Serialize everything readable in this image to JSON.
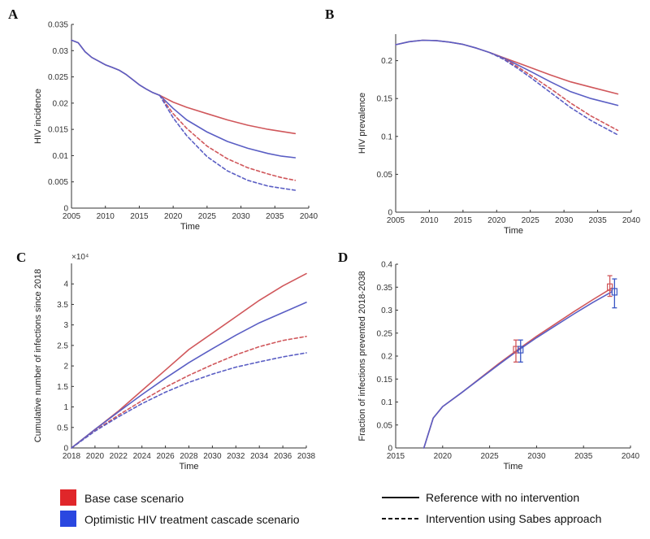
{
  "colors": {
    "base": "#d0575b",
    "optimistic": "#5a5ec4",
    "errbar_blue": "#3a56c4",
    "axis": "#333333"
  },
  "legend": {
    "base_label": "Base case scenario",
    "optimistic_label": "Optimistic HIV treatment cascade scenario",
    "solid_label": "Reference with no intervention",
    "dashed_label": "Intervention using Sabes approach"
  },
  "chart_data": [
    {
      "id": "A",
      "type": "line",
      "letter": "A",
      "xlabel": "Time",
      "ylabel": "HIV incidence",
      "xlim": [
        2005,
        2040
      ],
      "ylim": [
        0,
        0.035
      ],
      "xticks": [
        2005,
        2010,
        2015,
        2020,
        2025,
        2030,
        2035,
        2040
      ],
      "xtick_labels": [
        "2005",
        "2010",
        "2015",
        "2020",
        "2025",
        "2030",
        "2035",
        "2040"
      ],
      "yticks": [
        0,
        0.005,
        0.01,
        0.015,
        0.02,
        0.025,
        0.03,
        0.035
      ],
      "ytick_labels": [
        "0",
        "0.005",
        "0.01",
        "0.015",
        "0.02",
        "0.025",
        "0.03",
        "0.035"
      ],
      "series": [
        {
          "name": "Base case - reference",
          "color": "base",
          "dash": false,
          "x": [
            2005,
            2006,
            2007,
            2008,
            2009,
            2010,
            2011,
            2012,
            2013,
            2014,
            2015,
            2016,
            2017,
            2018,
            2020,
            2022,
            2025,
            2028,
            2031,
            2034,
            2036,
            2038
          ],
          "y": [
            0.032,
            0.0315,
            0.0298,
            0.0287,
            0.028,
            0.0273,
            0.0268,
            0.0263,
            0.0255,
            0.0245,
            0.0235,
            0.0227,
            0.022,
            0.0215,
            0.0202,
            0.0192,
            0.018,
            0.0168,
            0.0158,
            0.015,
            0.0146,
            0.0142
          ]
        },
        {
          "name": "Optimistic - reference",
          "color": "optimistic",
          "dash": false,
          "x": [
            2005,
            2006,
            2007,
            2008,
            2009,
            2010,
            2011,
            2012,
            2013,
            2014,
            2015,
            2016,
            2017,
            2018,
            2020,
            2022,
            2025,
            2028,
            2031,
            2034,
            2036,
            2038
          ],
          "y": [
            0.032,
            0.0315,
            0.0298,
            0.0287,
            0.028,
            0.0273,
            0.0268,
            0.0263,
            0.0255,
            0.0245,
            0.0235,
            0.0227,
            0.022,
            0.0215,
            0.019,
            0.0168,
            0.0145,
            0.0127,
            0.0114,
            0.0104,
            0.0099,
            0.0096
          ]
        },
        {
          "name": "Base case - Sabes intervention",
          "color": "base",
          "dash": true,
          "x": [
            2018,
            2020,
            2022,
            2025,
            2028,
            2031,
            2034,
            2036,
            2038
          ],
          "y": [
            0.0215,
            0.018,
            0.0152,
            0.0118,
            0.0094,
            0.0077,
            0.0065,
            0.0058,
            0.0053
          ]
        },
        {
          "name": "Optimistic - Sabes intervention",
          "color": "optimistic",
          "dash": true,
          "x": [
            2018,
            2020,
            2022,
            2025,
            2028,
            2031,
            2034,
            2036,
            2038
          ],
          "y": [
            0.0215,
            0.0172,
            0.0138,
            0.0098,
            0.0071,
            0.0053,
            0.0042,
            0.0038,
            0.0034
          ]
        }
      ]
    },
    {
      "id": "B",
      "type": "line",
      "letter": "B",
      "xlabel": "Time",
      "ylabel": "HIV prevalence",
      "xlim": [
        2005,
        2040
      ],
      "ylim": [
        0,
        0.235
      ],
      "xticks": [
        2005,
        2010,
        2015,
        2020,
        2025,
        2030,
        2035,
        2040
      ],
      "xtick_labels": [
        "2005",
        "2010",
        "2015",
        "2020",
        "2025",
        "2030",
        "2035",
        "2040"
      ],
      "yticks": [
        0,
        0.05,
        0.1,
        0.15,
        0.2
      ],
      "ytick_labels": [
        "0",
        "0.05",
        "0.1",
        "0.15",
        "0.2"
      ],
      "series": [
        {
          "name": "Base case - reference",
          "color": "base",
          "dash": false,
          "x": [
            2005,
            2007,
            2009,
            2011,
            2013,
            2015,
            2017,
            2019,
            2021,
            2023,
            2025,
            2028,
            2031,
            2034,
            2038
          ],
          "y": [
            0.221,
            0.225,
            0.227,
            0.2265,
            0.2245,
            0.2215,
            0.2165,
            0.2105,
            0.204,
            0.1975,
            0.191,
            0.181,
            0.172,
            0.165,
            0.156
          ]
        },
        {
          "name": "Optimistic - reference",
          "color": "optimistic",
          "dash": false,
          "x": [
            2005,
            2007,
            2009,
            2011,
            2013,
            2015,
            2017,
            2019,
            2021,
            2023,
            2025,
            2028,
            2031,
            2034,
            2038
          ],
          "y": [
            0.221,
            0.225,
            0.227,
            0.2265,
            0.2245,
            0.2215,
            0.2165,
            0.2105,
            0.2035,
            0.195,
            0.186,
            0.172,
            0.159,
            0.15,
            0.141
          ]
        },
        {
          "name": "Base case - Sabes intervention",
          "color": "base",
          "dash": true,
          "x": [
            2019,
            2021,
            2023,
            2025,
            2028,
            2031,
            2034,
            2038
          ],
          "y": [
            0.2105,
            0.2025,
            0.1925,
            0.181,
            0.163,
            0.144,
            0.127,
            0.108
          ]
        },
        {
          "name": "Optimistic - Sabes intervention",
          "color": "optimistic",
          "dash": true,
          "x": [
            2019,
            2021,
            2023,
            2025,
            2028,
            2031,
            2034,
            2038
          ],
          "y": [
            0.2105,
            0.202,
            0.1905,
            0.178,
            0.158,
            0.138,
            0.121,
            0.102
          ]
        }
      ]
    },
    {
      "id": "C",
      "type": "line",
      "letter": "C",
      "xlabel": "Time",
      "ylabel": "Cumulative number of infections since 2018",
      "exponent_label": "×10⁴",
      "xlim": [
        2018,
        2038
      ],
      "ylim": [
        0,
        4.5
      ],
      "xticks": [
        2018,
        2020,
        2022,
        2024,
        2026,
        2028,
        2030,
        2032,
        2034,
        2036,
        2038
      ],
      "xtick_labels": [
        "2018",
        "2020",
        "2022",
        "2024",
        "2026",
        "2028",
        "2030",
        "2032",
        "2034",
        "2036",
        "2038"
      ],
      "yticks": [
        0,
        0.5,
        1,
        1.5,
        2,
        2.5,
        3,
        3.5,
        4
      ],
      "ytick_labels": [
        "0",
        "0.5",
        "1",
        "1.5",
        "2",
        "2.5",
        "3",
        "3.5",
        "4"
      ],
      "series": [
        {
          "name": "Base case - reference",
          "color": "base",
          "dash": false,
          "x": [
            2018,
            2020,
            2022,
            2024,
            2026,
            2028,
            2030,
            2032,
            2034,
            2036,
            2038
          ],
          "y": [
            0,
            0.45,
            0.9,
            1.4,
            1.9,
            2.4,
            2.8,
            3.2,
            3.6,
            3.95,
            4.25
          ]
        },
        {
          "name": "Optimistic - reference",
          "color": "optimistic",
          "dash": false,
          "x": [
            2018,
            2020,
            2022,
            2024,
            2026,
            2028,
            2030,
            2032,
            2034,
            2036,
            2038
          ],
          "y": [
            0,
            0.45,
            0.88,
            1.3,
            1.7,
            2.08,
            2.42,
            2.75,
            3.05,
            3.3,
            3.55
          ]
        },
        {
          "name": "Base case - Sabes intervention",
          "color": "base",
          "dash": true,
          "x": [
            2018,
            2020,
            2022,
            2024,
            2026,
            2028,
            2030,
            2032,
            2034,
            2036,
            2038
          ],
          "y": [
            0,
            0.42,
            0.8,
            1.15,
            1.48,
            1.77,
            2.03,
            2.27,
            2.47,
            2.62,
            2.72
          ]
        },
        {
          "name": "Optimistic - Sabes intervention",
          "color": "optimistic",
          "dash": true,
          "x": [
            2018,
            2020,
            2022,
            2024,
            2026,
            2028,
            2030,
            2032,
            2034,
            2036,
            2038
          ],
          "y": [
            0,
            0.41,
            0.76,
            1.08,
            1.36,
            1.6,
            1.8,
            1.97,
            2.1,
            2.22,
            2.32
          ]
        }
      ]
    },
    {
      "id": "D",
      "type": "line",
      "letter": "D",
      "xlabel": "Time",
      "ylabel": "Fraction of infections prevented 2018-2038",
      "xlim": [
        2015,
        2040
      ],
      "ylim": [
        0,
        0.4
      ],
      "xticks": [
        2015,
        2020,
        2025,
        2030,
        2035,
        2040
      ],
      "xtick_labels": [
        "2015",
        "2020",
        "2025",
        "2030",
        "2035",
        "2040"
      ],
      "yticks": [
        0,
        0.05,
        0.1,
        0.15,
        0.2,
        0.25,
        0.3,
        0.35,
        0.4
      ],
      "ytick_labels": [
        "0",
        "0.05",
        "0.1",
        "0.15",
        "0.2",
        "0.25",
        "0.3",
        "0.35",
        "0.4"
      ],
      "series": [
        {
          "name": "Base case - fraction prevented",
          "color": "base",
          "dash": false,
          "x": [
            2018,
            2019,
            2020,
            2022,
            2024,
            2026,
            2028,
            2030,
            2032,
            2034,
            2036,
            2038
          ],
          "y": [
            0,
            0.065,
            0.09,
            0.12,
            0.152,
            0.184,
            0.214,
            0.243,
            0.27,
            0.297,
            0.323,
            0.348
          ]
        },
        {
          "name": "Optimistic - fraction prevented",
          "color": "optimistic",
          "dash": false,
          "x": [
            2018,
            2019,
            2020,
            2022,
            2024,
            2026,
            2028,
            2030,
            2032,
            2034,
            2036,
            2038
          ],
          "y": [
            0,
            0.065,
            0.09,
            0.12,
            0.151,
            0.182,
            0.212,
            0.24,
            0.266,
            0.292,
            0.317,
            0.34
          ]
        }
      ],
      "errorbars": [
        {
          "color": "base",
          "x": 2027.8,
          "y": 0.214,
          "low": 0.187,
          "high": 0.235
        },
        {
          "color": "errbar_blue",
          "x": 2028.3,
          "y": 0.214,
          "low": 0.187,
          "high": 0.235
        },
        {
          "color": "base",
          "x": 2037.8,
          "y": 0.35,
          "low": 0.33,
          "high": 0.375
        },
        {
          "color": "errbar_blue",
          "x": 2038.3,
          "y": 0.34,
          "low": 0.305,
          "high": 0.368
        }
      ]
    }
  ]
}
